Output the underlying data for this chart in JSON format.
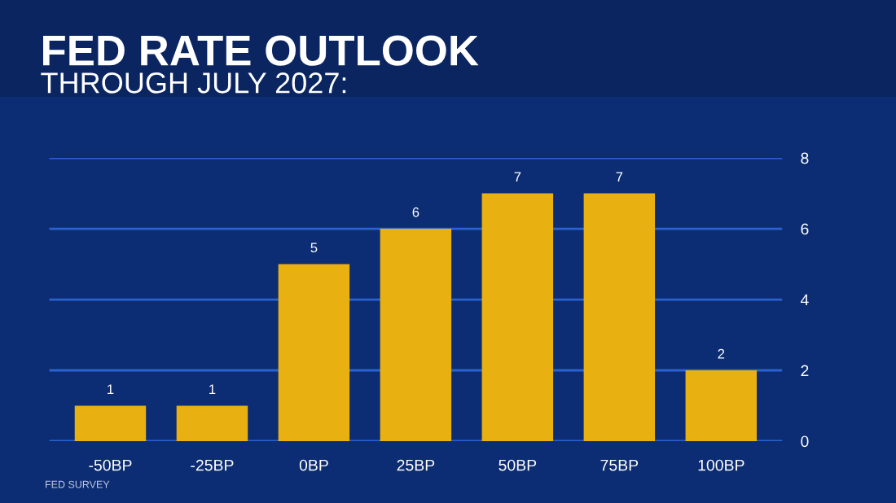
{
  "chart_data": {
    "type": "bar",
    "title": "FED RATE OUTLOOK",
    "subtitle": "THROUGH JULY 2027:",
    "categories": [
      "-50BP",
      "-25BP",
      "0BP",
      "25BP",
      "50BP",
      "75BP",
      "100BP"
    ],
    "values": [
      1,
      1,
      5,
      6,
      7,
      7,
      2
    ],
    "color": "#e8b010",
    "ylim": [
      0,
      8
    ],
    "yticks": [
      0,
      2,
      4,
      6,
      8
    ],
    "grid": "y",
    "data_labels": true,
    "annotations": [
      "FED SURVEY"
    ]
  }
}
